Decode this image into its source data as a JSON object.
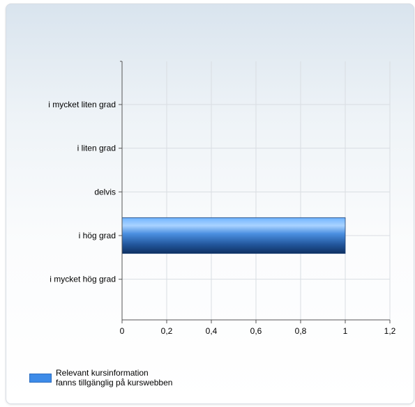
{
  "chart_data": {
    "type": "bar",
    "orientation": "horizontal",
    "categories": [
      "i mycket liten grad",
      "i liten grad",
      "delvis",
      "i hög grad",
      "i mycket hög grad"
    ],
    "series": [
      {
        "name": "Relevant kursinformation fanns tillgänglig på kurswebben",
        "values": [
          0,
          0,
          0,
          1,
          0
        ]
      }
    ],
    "xlim": [
      0,
      1.2
    ],
    "xticks": [
      "0",
      "0,2",
      "0,4",
      "0,6",
      "0,8",
      "1",
      "1,2"
    ],
    "grid": true,
    "legend_position": "bottom-left",
    "bar_color": "#3d8be8",
    "legend_lines": [
      "Relevant kursinformation",
      "fanns tillgänglig på kurswebben"
    ]
  }
}
